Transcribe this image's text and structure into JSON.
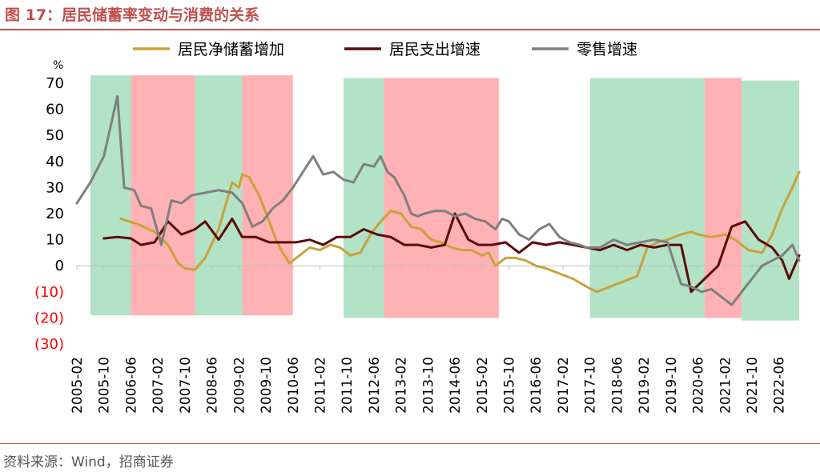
{
  "title": "图 17：居民储蓄率变动与消费的关系",
  "source": "资料来源：Wind，招商证券",
  "colors": {
    "title": "#c0504d",
    "green_band": "#b2e3c6",
    "red_band": "#ffb1b3",
    "negative_tick": "#ff0000"
  },
  "chart_data": {
    "type": "line",
    "y_unit_label": "%",
    "ylim": [
      -30,
      70
    ],
    "y_ticks": [
      70,
      60,
      50,
      40,
      30,
      20,
      10,
      0,
      -10,
      -20,
      -30
    ],
    "y_tick_labels": [
      "70",
      "60",
      "50",
      "40",
      "30",
      "20",
      "10",
      "0",
      "(10)",
      "(20)",
      "(30)"
    ],
    "xlim": [
      "2005-02",
      "2022-12"
    ],
    "x_tick_labels": [
      "2005-02",
      "2005-10",
      "2006-06",
      "2007-02",
      "2007-10",
      "2008-06",
      "2009-02",
      "2009-10",
      "2010-06",
      "2011-02",
      "2011-10",
      "2012-06",
      "2013-02",
      "2013-10",
      "2014-06",
      "2015-02",
      "2015-10",
      "2016-06",
      "2017-02",
      "2017-10",
      "2018-06",
      "2019-02",
      "2019-10",
      "2020-06",
      "2021-02",
      "2021-10",
      "2022-06"
    ],
    "legend": [
      "居民净储蓄增加",
      "居民支出增速",
      "零售增速"
    ],
    "legend_position": "top",
    "bands": [
      {
        "color": "green",
        "start": "2005-06",
        "end": "2006-06",
        "ymin": -19,
        "ymax": 73
      },
      {
        "color": "red",
        "start": "2006-06",
        "end": "2008-01",
        "ymin": -19,
        "ymax": 73
      },
      {
        "color": "green",
        "start": "2008-01",
        "end": "2009-03",
        "ymin": -19,
        "ymax": 73
      },
      {
        "color": "red",
        "start": "2009-03",
        "end": "2010-06",
        "ymin": -19,
        "ymax": 73
      },
      {
        "color": "green",
        "start": "2011-09",
        "end": "2012-09",
        "ymin": -20,
        "ymax": 72
      },
      {
        "color": "red",
        "start": "2012-09",
        "end": "2015-07",
        "ymin": -20,
        "ymax": 72
      },
      {
        "color": "green",
        "start": "2017-10",
        "end": "2020-08",
        "ymin": -20,
        "ymax": 72
      },
      {
        "color": "red",
        "start": "2020-08",
        "end": "2021-07",
        "ymin": -20,
        "ymax": 72
      },
      {
        "color": "green",
        "start": "2021-07",
        "end": "2022-12",
        "ymin": -21,
        "ymax": 71
      }
    ],
    "series": [
      {
        "name": "居民净储蓄增加",
        "color": "#c9a23a",
        "points": [
          [
            "2006-03",
            18
          ],
          [
            "2006-08",
            16
          ],
          [
            "2007-01",
            13
          ],
          [
            "2007-05",
            8
          ],
          [
            "2007-08",
            1
          ],
          [
            "2007-10",
            -1
          ],
          [
            "2008-01",
            -1.5
          ],
          [
            "2008-04",
            3
          ],
          [
            "2008-08",
            14
          ],
          [
            "2008-12",
            32
          ],
          [
            "2009-02",
            30
          ],
          [
            "2009-03",
            35
          ],
          [
            "2009-05",
            34
          ],
          [
            "2009-08",
            27
          ],
          [
            "2009-11",
            17
          ],
          [
            "2010-01",
            10
          ],
          [
            "2010-03",
            5
          ],
          [
            "2010-05",
            1
          ],
          [
            "2010-08",
            4
          ],
          [
            "2010-11",
            7
          ],
          [
            "2011-02",
            6
          ],
          [
            "2011-05",
            8
          ],
          [
            "2011-08",
            7
          ],
          [
            "2011-11",
            4
          ],
          [
            "2012-02",
            5
          ],
          [
            "2012-05",
            12
          ],
          [
            "2012-08",
            17
          ],
          [
            "2012-11",
            21
          ],
          [
            "2013-02",
            20
          ],
          [
            "2013-05",
            15
          ],
          [
            "2013-08",
            14
          ],
          [
            "2013-11",
            10
          ],
          [
            "2014-02",
            9
          ],
          [
            "2014-05",
            7
          ],
          [
            "2014-08",
            6
          ],
          [
            "2014-11",
            6
          ],
          [
            "2015-02",
            4
          ],
          [
            "2015-04",
            5
          ],
          [
            "2015-06",
            0
          ],
          [
            "2015-09",
            3
          ],
          [
            "2015-12",
            3
          ],
          [
            "2016-03",
            2
          ],
          [
            "2016-06",
            0
          ],
          [
            "2016-09",
            -1
          ],
          [
            "2017-01",
            -3
          ],
          [
            "2017-05",
            -5
          ],
          [
            "2017-09",
            -8
          ],
          [
            "2017-12",
            -10
          ],
          [
            "2018-04",
            -8
          ],
          [
            "2018-08",
            -6
          ],
          [
            "2018-12",
            -4
          ],
          [
            "2019-03",
            7
          ],
          [
            "2019-06",
            9
          ],
          [
            "2019-09",
            10
          ],
          [
            "2020-01",
            12
          ],
          [
            "2020-04",
            13
          ],
          [
            "2020-06",
            12
          ],
          [
            "2020-10",
            11
          ],
          [
            "2021-02",
            12
          ],
          [
            "2021-05",
            10
          ],
          [
            "2021-09",
            6
          ],
          [
            "2022-01",
            5
          ],
          [
            "2022-04",
            12
          ],
          [
            "2022-07",
            22
          ],
          [
            "2022-10",
            30
          ],
          [
            "2022-12",
            36
          ]
        ]
      },
      {
        "name": "居民支出增速",
        "color": "#5c0a0a",
        "points": [
          [
            "2005-10",
            10.5
          ],
          [
            "2006-02",
            11
          ],
          [
            "2006-06",
            10.5
          ],
          [
            "2006-09",
            8
          ],
          [
            "2007-01",
            9
          ],
          [
            "2007-05",
            17
          ],
          [
            "2007-09",
            12
          ],
          [
            "2008-01",
            14
          ],
          [
            "2008-04",
            17
          ],
          [
            "2008-08",
            10
          ],
          [
            "2008-12",
            18
          ],
          [
            "2009-03",
            11
          ],
          [
            "2009-07",
            11
          ],
          [
            "2009-11",
            9
          ],
          [
            "2010-03",
            9
          ],
          [
            "2010-07",
            9
          ],
          [
            "2010-11",
            10
          ],
          [
            "2011-03",
            8
          ],
          [
            "2011-07",
            11
          ],
          [
            "2011-11",
            11
          ],
          [
            "2012-03",
            14
          ],
          [
            "2012-07",
            12
          ],
          [
            "2012-11",
            11
          ],
          [
            "2013-03",
            8
          ],
          [
            "2013-07",
            8
          ],
          [
            "2013-11",
            7
          ],
          [
            "2014-03",
            8
          ],
          [
            "2014-06",
            20
          ],
          [
            "2014-10",
            10
          ],
          [
            "2015-01",
            8
          ],
          [
            "2015-05",
            8
          ],
          [
            "2015-09",
            9
          ],
          [
            "2016-01",
            5
          ],
          [
            "2016-05",
            9
          ],
          [
            "2016-09",
            8
          ],
          [
            "2017-01",
            9
          ],
          [
            "2017-05",
            8
          ],
          [
            "2017-09",
            7
          ],
          [
            "2018-01",
            6
          ],
          [
            "2018-05",
            8
          ],
          [
            "2018-09",
            6
          ],
          [
            "2019-01",
            8
          ],
          [
            "2019-05",
            7
          ],
          [
            "2019-09",
            8
          ],
          [
            "2020-01",
            8
          ],
          [
            "2020-04",
            -10
          ],
          [
            "2020-08",
            -5
          ],
          [
            "2020-12",
            0
          ],
          [
            "2021-04",
            15
          ],
          [
            "2021-08",
            17
          ],
          [
            "2021-12",
            10
          ],
          [
            "2022-04",
            7
          ],
          [
            "2022-07",
            2
          ],
          [
            "2022-09",
            -5
          ],
          [
            "2022-12",
            4
          ]
        ]
      },
      {
        "name": "零售增速",
        "color": "#7f7f7f",
        "points": [
          [
            "2005-02",
            24
          ],
          [
            "2005-06",
            32
          ],
          [
            "2005-10",
            42
          ],
          [
            "2006-02",
            65
          ],
          [
            "2006-04",
            30
          ],
          [
            "2006-07",
            29
          ],
          [
            "2006-09",
            23
          ],
          [
            "2006-12",
            22
          ],
          [
            "2007-03",
            8
          ],
          [
            "2007-06",
            25
          ],
          [
            "2007-09",
            24
          ],
          [
            "2007-12",
            27
          ],
          [
            "2008-04",
            28
          ],
          [
            "2008-08",
            29
          ],
          [
            "2008-12",
            28
          ],
          [
            "2009-03",
            24
          ],
          [
            "2009-06",
            15
          ],
          [
            "2009-09",
            17
          ],
          [
            "2009-12",
            22
          ],
          [
            "2010-03",
            25
          ],
          [
            "2010-06",
            30
          ],
          [
            "2010-09",
            36
          ],
          [
            "2010-12",
            42
          ],
          [
            "2011-03",
            35
          ],
          [
            "2011-06",
            36
          ],
          [
            "2011-09",
            33
          ],
          [
            "2011-12",
            32
          ],
          [
            "2012-03",
            39
          ],
          [
            "2012-06",
            38
          ],
          [
            "2012-08",
            42
          ],
          [
            "2012-10",
            36
          ],
          [
            "2012-12",
            34
          ],
          [
            "2013-03",
            27
          ],
          [
            "2013-05",
            20
          ],
          [
            "2013-07",
            19
          ],
          [
            "2013-09",
            20
          ],
          [
            "2013-12",
            21
          ],
          [
            "2014-03",
            21
          ],
          [
            "2014-06",
            19
          ],
          [
            "2014-09",
            20
          ],
          [
            "2014-12",
            18
          ],
          [
            "2015-03",
            17
          ],
          [
            "2015-06",
            14
          ],
          [
            "2015-08",
            18
          ],
          [
            "2015-10",
            17
          ],
          [
            "2016-01",
            12
          ],
          [
            "2016-04",
            10
          ],
          [
            "2016-07",
            14
          ],
          [
            "2016-10",
            16
          ],
          [
            "2017-01",
            11
          ],
          [
            "2017-04",
            9
          ],
          [
            "2017-07",
            8
          ],
          [
            "2017-09",
            7
          ],
          [
            "2018-01",
            7
          ],
          [
            "2018-05",
            10
          ],
          [
            "2018-09",
            8
          ],
          [
            "2019-01",
            9
          ],
          [
            "2019-05",
            10
          ],
          [
            "2019-09",
            9
          ],
          [
            "2020-01",
            -7
          ],
          [
            "2020-04",
            -8
          ],
          [
            "2020-07",
            -10
          ],
          [
            "2020-10",
            -9
          ],
          [
            "2021-01",
            -12
          ],
          [
            "2021-04",
            -15
          ],
          [
            "2021-07",
            -10
          ],
          [
            "2021-10",
            -5
          ],
          [
            "2022-01",
            0
          ],
          [
            "2022-04",
            2
          ],
          [
            "2022-07",
            4
          ],
          [
            "2022-10",
            8
          ],
          [
            "2022-12",
            2
          ]
        ]
      }
    ]
  }
}
